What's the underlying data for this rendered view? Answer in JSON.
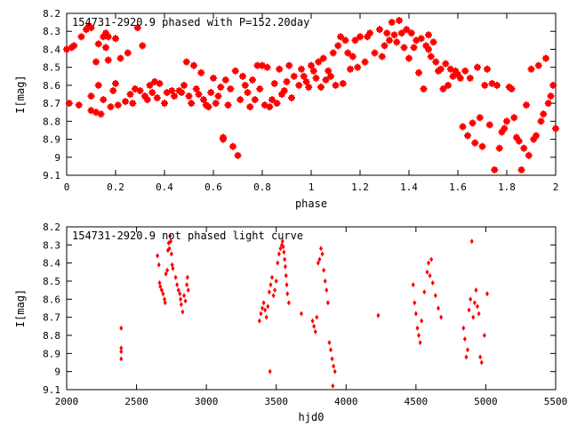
{
  "chart_data": [
    {
      "type": "scatter",
      "title": "154731-2920.9 phased with P=152.20day",
      "xlabel": "phase",
      "ylabel": "I[mag]",
      "xlim": [
        0,
        2
      ],
      "ylim": [
        8.2,
        9.1
      ],
      "y_inverted": true,
      "grid": false,
      "marker_color": "#ff0000",
      "marker": "star",
      "xticks": [
        0,
        0.2,
        0.4,
        0.6,
        0.8,
        1,
        1.2,
        1.4,
        1.6,
        1.8,
        2
      ],
      "xtick_labels": [
        "0",
        "0.2",
        "0.4",
        "0.6",
        "0.8",
        "1",
        "1.2",
        "1.4",
        "1.6",
        "1.8",
        "2"
      ],
      "yticks": [
        8.2,
        8.3,
        8.4,
        8.5,
        8.6,
        8.7,
        8.8,
        8.9,
        9,
        9.1
      ],
      "ytick_labels": [
        "8.2",
        "8.3",
        "8.4",
        "8.5",
        "8.6",
        "8.7",
        "8.8",
        "8.9",
        "9",
        "9.1"
      ],
      "points": [
        [
          0.0,
          8.4
        ],
        [
          0.01,
          8.7
        ],
        [
          0.02,
          8.39
        ],
        [
          0.03,
          8.38
        ],
        [
          0.05,
          8.71
        ],
        [
          0.06,
          8.33
        ],
        [
          0.08,
          8.29
        ],
        [
          0.09,
          8.27
        ],
        [
          0.1,
          8.28
        ],
        [
          0.1,
          8.66
        ],
        [
          0.1,
          8.74
        ],
        [
          0.12,
          8.75
        ],
        [
          0.12,
          8.47
        ],
        [
          0.13,
          8.37
        ],
        [
          0.13,
          8.6
        ],
        [
          0.14,
          8.76
        ],
        [
          0.15,
          8.33
        ],
        [
          0.15,
          8.68
        ],
        [
          0.16,
          8.39
        ],
        [
          0.16,
          8.31
        ],
        [
          0.17,
          8.33
        ],
        [
          0.17,
          8.46
        ],
        [
          0.18,
          8.72
        ],
        [
          0.19,
          8.63
        ],
        [
          0.2,
          8.34
        ],
        [
          0.2,
          8.59
        ],
        [
          0.21,
          8.71
        ],
        [
          0.22,
          8.45
        ],
        [
          0.24,
          8.69
        ],
        [
          0.25,
          8.42
        ],
        [
          0.26,
          8.65
        ],
        [
          0.27,
          8.7
        ],
        [
          0.28,
          8.62
        ],
        [
          0.29,
          8.28
        ],
        [
          0.3,
          8.63
        ],
        [
          0.31,
          8.38
        ],
        [
          0.32,
          8.66
        ],
        [
          0.33,
          8.68
        ],
        [
          0.34,
          8.6
        ],
        [
          0.35,
          8.64
        ],
        [
          0.36,
          8.58
        ],
        [
          0.37,
          8.67
        ],
        [
          0.38,
          8.59
        ],
        [
          0.4,
          8.7
        ],
        [
          0.41,
          8.64
        ],
        [
          0.43,
          8.63
        ],
        [
          0.44,
          8.66
        ],
        [
          0.46,
          8.63
        ],
        [
          0.47,
          8.64
        ],
        [
          0.48,
          8.6
        ],
        [
          0.49,
          8.47
        ],
        [
          0.5,
          8.66
        ],
        [
          0.51,
          8.7
        ],
        [
          0.52,
          8.49
        ],
        [
          0.53,
          8.62
        ],
        [
          0.54,
          8.65
        ],
        [
          0.55,
          8.53
        ],
        [
          0.56,
          8.68
        ],
        [
          0.57,
          8.71
        ],
        [
          0.58,
          8.72
        ],
        [
          0.59,
          8.64
        ],
        [
          0.6,
          8.56
        ],
        [
          0.61,
          8.7
        ],
        [
          0.62,
          8.66
        ],
        [
          0.63,
          8.61
        ],
        [
          0.64,
          8.89
        ],
        [
          0.64,
          8.9
        ],
        [
          0.65,
          8.57
        ],
        [
          0.66,
          8.71
        ],
        [
          0.67,
          8.62
        ],
        [
          0.68,
          8.94
        ],
        [
          0.69,
          8.52
        ],
        [
          0.7,
          8.99
        ],
        [
          0.71,
          8.68
        ],
        [
          0.72,
          8.55
        ],
        [
          0.73,
          8.6
        ],
        [
          0.74,
          8.64
        ],
        [
          0.75,
          8.72
        ],
        [
          0.76,
          8.57
        ],
        [
          0.77,
          8.68
        ],
        [
          0.78,
          8.49
        ],
        [
          0.79,
          8.62
        ],
        [
          0.8,
          8.49
        ],
        [
          0.81,
          8.71
        ],
        [
          0.82,
          8.5
        ],
        [
          0.83,
          8.72
        ],
        [
          0.84,
          8.68
        ],
        [
          0.85,
          8.59
        ],
        [
          0.86,
          8.7
        ],
        [
          0.87,
          8.51
        ],
        [
          0.88,
          8.65
        ],
        [
          0.89,
          8.63
        ],
        [
          0.9,
          8.58
        ],
        [
          0.91,
          8.49
        ],
        [
          0.92,
          8.67
        ],
        [
          0.93,
          8.55
        ],
        [
          0.95,
          8.6
        ],
        [
          0.96,
          8.51
        ],
        [
          0.97,
          8.55
        ],
        [
          0.98,
          8.58
        ],
        [
          0.99,
          8.61
        ],
        [
          1.0,
          8.49
        ],
        [
          1.01,
          8.52
        ],
        [
          1.02,
          8.56
        ],
        [
          1.03,
          8.47
        ],
        [
          1.04,
          8.61
        ],
        [
          1.05,
          8.45
        ],
        [
          1.06,
          8.57
        ],
        [
          1.07,
          8.52
        ],
        [
          1.08,
          8.55
        ],
        [
          1.09,
          8.42
        ],
        [
          1.1,
          8.6
        ],
        [
          1.11,
          8.38
        ],
        [
          1.12,
          8.33
        ],
        [
          1.13,
          8.59
        ],
        [
          1.14,
          8.35
        ],
        [
          1.15,
          8.42
        ],
        [
          1.16,
          8.51
        ],
        [
          1.17,
          8.44
        ],
        [
          1.18,
          8.35
        ],
        [
          1.19,
          8.5
        ],
        [
          1.2,
          8.33
        ],
        [
          1.22,
          8.47
        ],
        [
          1.23,
          8.33
        ],
        [
          1.24,
          8.31
        ],
        [
          1.26,
          8.42
        ],
        [
          1.28,
          8.29
        ],
        [
          1.29,
          8.44
        ],
        [
          1.3,
          8.38
        ],
        [
          1.31,
          8.31
        ],
        [
          1.32,
          8.35
        ],
        [
          1.33,
          8.25
        ],
        [
          1.34,
          8.32
        ],
        [
          1.35,
          8.36
        ],
        [
          1.36,
          8.24
        ],
        [
          1.37,
          8.31
        ],
        [
          1.38,
          8.39
        ],
        [
          1.39,
          8.29
        ],
        [
          1.4,
          8.45
        ],
        [
          1.41,
          8.31
        ],
        [
          1.42,
          8.39
        ],
        [
          1.43,
          8.35
        ],
        [
          1.44,
          8.53
        ],
        [
          1.45,
          8.34
        ],
        [
          1.46,
          8.62
        ],
        [
          1.47,
          8.38
        ],
        [
          1.48,
          8.4
        ],
        [
          1.48,
          8.32
        ],
        [
          1.49,
          8.44
        ],
        [
          1.5,
          8.36
        ],
        [
          1.51,
          8.47
        ],
        [
          1.52,
          8.52
        ],
        [
          1.53,
          8.51
        ],
        [
          1.54,
          8.62
        ],
        [
          1.55,
          8.48
        ],
        [
          1.56,
          8.6
        ],
        [
          1.57,
          8.51
        ],
        [
          1.58,
          8.55
        ],
        [
          1.59,
          8.52
        ],
        [
          1.6,
          8.54
        ],
        [
          1.61,
          8.56
        ],
        [
          1.62,
          8.83
        ],
        [
          1.63,
          8.52
        ],
        [
          1.64,
          8.88
        ],
        [
          1.65,
          8.56
        ],
        [
          1.66,
          8.81
        ],
        [
          1.67,
          8.92
        ],
        [
          1.68,
          8.5
        ],
        [
          1.69,
          8.78
        ],
        [
          1.7,
          8.94
        ],
        [
          1.71,
          8.6
        ],
        [
          1.72,
          8.51
        ],
        [
          1.73,
          8.82
        ],
        [
          1.74,
          8.59
        ],
        [
          1.75,
          9.07
        ],
        [
          1.76,
          8.6
        ],
        [
          1.77,
          8.95
        ],
        [
          1.78,
          8.86
        ],
        [
          1.79,
          8.84
        ],
        [
          1.8,
          8.8
        ],
        [
          1.81,
          8.61
        ],
        [
          1.82,
          8.62
        ],
        [
          1.83,
          8.78
        ],
        [
          1.84,
          8.89
        ],
        [
          1.85,
          8.91
        ],
        [
          1.86,
          9.07
        ],
        [
          1.87,
          8.95
        ],
        [
          1.88,
          8.71
        ],
        [
          1.89,
          8.99
        ],
        [
          1.9,
          8.51
        ],
        [
          1.91,
          8.9
        ],
        [
          1.92,
          8.88
        ],
        [
          1.93,
          8.49
        ],
        [
          1.94,
          8.8
        ],
        [
          1.95,
          8.76
        ],
        [
          1.96,
          8.45
        ],
        [
          1.97,
          8.7
        ],
        [
          1.98,
          8.66
        ],
        [
          1.99,
          8.6
        ],
        [
          2.0,
          8.84
        ]
      ]
    },
    {
      "type": "scatter",
      "title": "154731-2920.9 not phased light curve",
      "xlabel": "hjd0",
      "ylabel": "I[mag]",
      "xlim": [
        2000,
        5500
      ],
      "ylim": [
        8.2,
        9.1
      ],
      "y_inverted": true,
      "grid": false,
      "marker_color": "#ff0000",
      "marker": "diamond",
      "xticks": [
        2000,
        2500,
        3000,
        3500,
        4000,
        4500,
        5000,
        5500
      ],
      "xtick_labels": [
        "2000",
        "2500",
        "3000",
        "3500",
        "4000",
        "4500",
        "5000",
        "5500"
      ],
      "yticks": [
        8.2,
        8.3,
        8.4,
        8.5,
        8.6,
        8.7,
        8.8,
        8.9,
        9,
        9.1
      ],
      "ytick_labels": [
        "8.2",
        "8.3",
        "8.4",
        "8.5",
        "8.6",
        "8.7",
        "8.8",
        "8.9",
        "9",
        "9.1"
      ],
      "points": [
        [
          2390,
          8.76
        ],
        [
          2390,
          8.87
        ],
        [
          2390,
          8.89
        ],
        [
          2390,
          8.93
        ],
        [
          2650,
          8.36
        ],
        [
          2660,
          8.41
        ],
        [
          2665,
          8.51
        ],
        [
          2670,
          8.53
        ],
        [
          2680,
          8.55
        ],
        [
          2690,
          8.57
        ],
        [
          2700,
          8.6
        ],
        [
          2705,
          8.62
        ],
        [
          2710,
          8.46
        ],
        [
          2720,
          8.44
        ],
        [
          2725,
          8.33
        ],
        [
          2730,
          8.29
        ],
        [
          2735,
          8.32
        ],
        [
          2740,
          8.25
        ],
        [
          2745,
          8.28
        ],
        [
          2750,
          8.35
        ],
        [
          2755,
          8.41
        ],
        [
          2760,
          8.43
        ],
        [
          2780,
          8.48
        ],
        [
          2790,
          8.52
        ],
        [
          2800,
          8.55
        ],
        [
          2810,
          8.57
        ],
        [
          2815,
          8.6
        ],
        [
          2820,
          8.63
        ],
        [
          2830,
          8.67
        ],
        [
          2840,
          8.58
        ],
        [
          2850,
          8.61
        ],
        [
          2860,
          8.52
        ],
        [
          2865,
          8.48
        ],
        [
          2870,
          8.55
        ],
        [
          3380,
          8.72
        ],
        [
          3390,
          8.68
        ],
        [
          3400,
          8.65
        ],
        [
          3410,
          8.62
        ],
        [
          3420,
          8.66
        ],
        [
          3430,
          8.7
        ],
        [
          3440,
          8.64
        ],
        [
          3450,
          8.56
        ],
        [
          3455,
          9.0
        ],
        [
          3460,
          8.52
        ],
        [
          3470,
          8.48
        ],
        [
          3480,
          8.58
        ],
        [
          3490,
          8.55
        ],
        [
          3500,
          8.5
        ],
        [
          3510,
          8.4
        ],
        [
          3520,
          8.35
        ],
        [
          3530,
          8.32
        ],
        [
          3540,
          8.3
        ],
        [
          3545,
          8.28
        ],
        [
          3550,
          8.31
        ],
        [
          3555,
          8.34
        ],
        [
          3560,
          8.38
        ],
        [
          3565,
          8.42
        ],
        [
          3570,
          8.47
        ],
        [
          3575,
          8.52
        ],
        [
          3580,
          8.57
        ],
        [
          3590,
          8.62
        ],
        [
          3680,
          8.68
        ],
        [
          3760,
          8.72
        ],
        [
          3770,
          8.75
        ],
        [
          3780,
          8.78
        ],
        [
          3790,
          8.7
        ],
        [
          3800,
          8.4
        ],
        [
          3810,
          8.38
        ],
        [
          3820,
          8.32
        ],
        [
          3830,
          8.35
        ],
        [
          3840,
          8.44
        ],
        [
          3850,
          8.5
        ],
        [
          3860,
          8.55
        ],
        [
          3870,
          8.62
        ],
        [
          3880,
          8.84
        ],
        [
          3890,
          8.88
        ],
        [
          3900,
          8.93
        ],
        [
          3905,
          9.08
        ],
        [
          3910,
          8.97
        ],
        [
          3920,
          9.0
        ],
        [
          4230,
          8.69
        ],
        [
          4480,
          8.52
        ],
        [
          4490,
          8.62
        ],
        [
          4500,
          8.68
        ],
        [
          4510,
          8.76
        ],
        [
          4520,
          8.8
        ],
        [
          4530,
          8.84
        ],
        [
          4540,
          8.72
        ],
        [
          4560,
          8.56
        ],
        [
          4580,
          8.45
        ],
        [
          4590,
          8.4
        ],
        [
          4600,
          8.47
        ],
        [
          4610,
          8.38
        ],
        [
          4620,
          8.51
        ],
        [
          4640,
          8.58
        ],
        [
          4660,
          8.65
        ],
        [
          4680,
          8.7
        ],
        [
          4840,
          8.76
        ],
        [
          4850,
          8.82
        ],
        [
          4860,
          8.92
        ],
        [
          4870,
          8.88
        ],
        [
          4880,
          8.66
        ],
        [
          4890,
          8.6
        ],
        [
          4900,
          8.28
        ],
        [
          4910,
          8.7
        ],
        [
          4920,
          8.62
        ],
        [
          4930,
          8.55
        ],
        [
          4940,
          8.64
        ],
        [
          4950,
          8.68
        ],
        [
          4960,
          8.92
        ],
        [
          4970,
          8.95
        ],
        [
          4990,
          8.8
        ],
        [
          5010,
          8.57
        ]
      ]
    }
  ]
}
